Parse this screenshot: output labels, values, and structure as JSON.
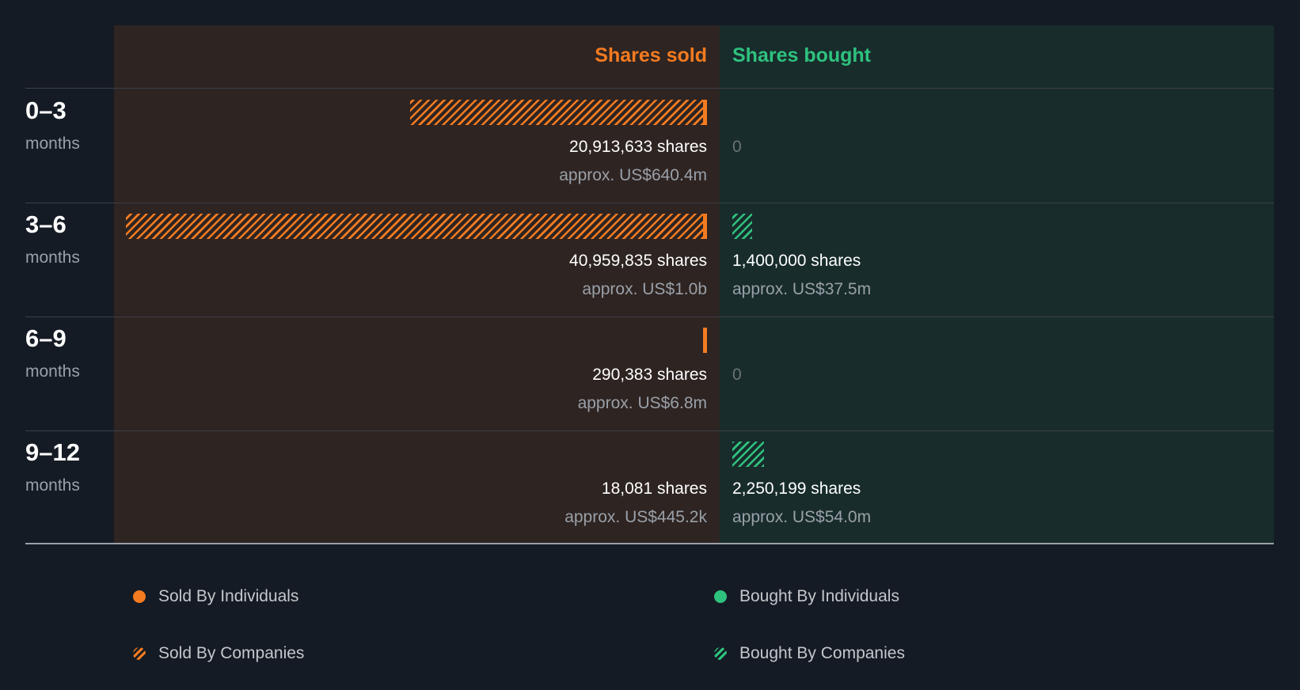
{
  "header": {
    "sold_title": "Shares sold",
    "bought_title": "Shares bought"
  },
  "colors": {
    "sold": "#f47b20",
    "bought": "#2ec27e"
  },
  "chart_data": {
    "type": "bar",
    "categories": [
      "0–3",
      "3–6",
      "6–9",
      "9–12"
    ],
    "category_unit": "months",
    "series": [
      {
        "name": "Shares sold",
        "values": [
          20913633,
          40959835,
          290383,
          18081
        ],
        "labels": [
          "20,913,633 shares",
          "40,959,835 shares",
          "290,383 shares",
          "18,081 shares"
        ],
        "approx": [
          "approx. US$640.4m",
          "approx. US$1.0b",
          "approx. US$6.8m",
          "approx. US$445.2k"
        ]
      },
      {
        "name": "Shares bought",
        "values": [
          0,
          1400000,
          0,
          2250199
        ],
        "labels": [
          "0",
          "1,400,000 shares",
          "0",
          "2,250,199 shares"
        ],
        "approx": [
          "",
          "approx. US$37.5m",
          "",
          "approx. US$54.0m"
        ]
      }
    ]
  },
  "legend": {
    "sold_individuals": "Sold By Individuals",
    "bought_individuals": "Bought By Individuals",
    "sold_companies": "Sold By Companies",
    "bought_companies": "Bought By Companies"
  }
}
